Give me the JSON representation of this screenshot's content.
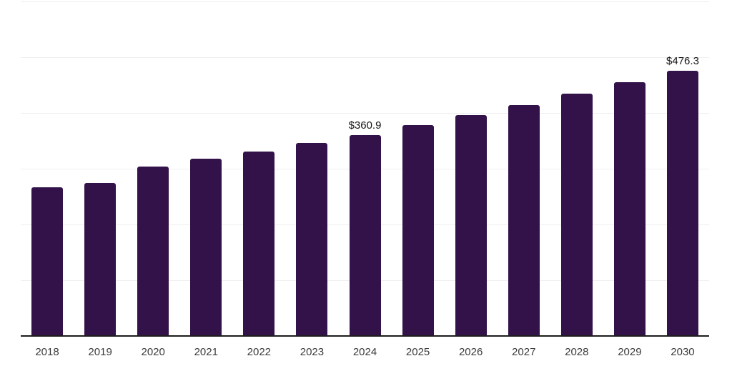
{
  "chart_data": {
    "type": "bar",
    "title": "",
    "xlabel": "",
    "ylabel": "",
    "categories": [
      "2018",
      "2019",
      "2020",
      "2021",
      "2022",
      "2023",
      "2024",
      "2025",
      "2026",
      "2027",
      "2028",
      "2029",
      "2030"
    ],
    "values": [
      266.1,
      274.0,
      303.4,
      318.0,
      331.0,
      346.0,
      360.9,
      378.0,
      395.9,
      414.0,
      434.4,
      455.2,
      476.3
    ],
    "bar_labels": [
      "",
      "",
      "",
      "",
      "",
      "",
      "$360.9",
      "",
      "",
      "",
      "",
      "",
      "$476.3"
    ],
    "ylim": [
      0,
      600
    ],
    "grid": "horizontal",
    "grid_interval": 100,
    "legend": "none",
    "y_tick_labels_visible": false,
    "colors": {
      "bar": "#331249",
      "gridline": "#efefef",
      "axis": "#1d1d1d",
      "tick_label": "#3b3b3b",
      "value_label": "#151515",
      "background": "#ffffff"
    }
  }
}
